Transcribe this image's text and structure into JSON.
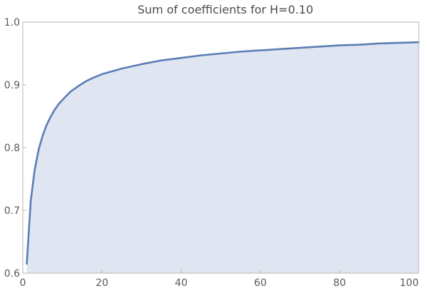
{
  "chart_data": {
    "type": "area",
    "title": "Sum of coefficients for H=0.10",
    "xlabel": "",
    "ylabel": "",
    "xlim": [
      0,
      100
    ],
    "ylim": [
      0.6,
      1.0
    ],
    "x_ticks": [
      0,
      20,
      40,
      60,
      80,
      100
    ],
    "x_tick_labels": [
      "0",
      "20",
      "40",
      "60",
      "80",
      "100"
    ],
    "y_ticks": [
      0.6,
      0.7,
      0.8,
      0.9,
      1.0
    ],
    "y_tick_labels": [
      "0.6",
      "0.7",
      "0.8",
      "0.9",
      "1.0"
    ],
    "grid": false,
    "legend": "none",
    "line_color": "#5b7db5",
    "fill_color": "#e0e6f1",
    "series": [
      {
        "x": [
          1,
          2,
          3,
          4,
          5,
          6,
          7,
          8,
          9,
          10,
          12,
          14,
          16,
          18,
          20,
          25,
          30,
          35,
          40,
          45,
          50,
          55,
          60,
          65,
          70,
          75,
          80,
          85,
          90,
          95,
          100
        ],
        "values": [
          0.615,
          0.715,
          0.765,
          0.797,
          0.819,
          0.836,
          0.849,
          0.86,
          0.869,
          0.876,
          0.889,
          0.898,
          0.906,
          0.912,
          0.917,
          0.926,
          0.933,
          0.939,
          0.943,
          0.947,
          0.95,
          0.953,
          0.955,
          0.957,
          0.959,
          0.961,
          0.963,
          0.964,
          0.966,
          0.967,
          0.968
        ]
      }
    ]
  }
}
